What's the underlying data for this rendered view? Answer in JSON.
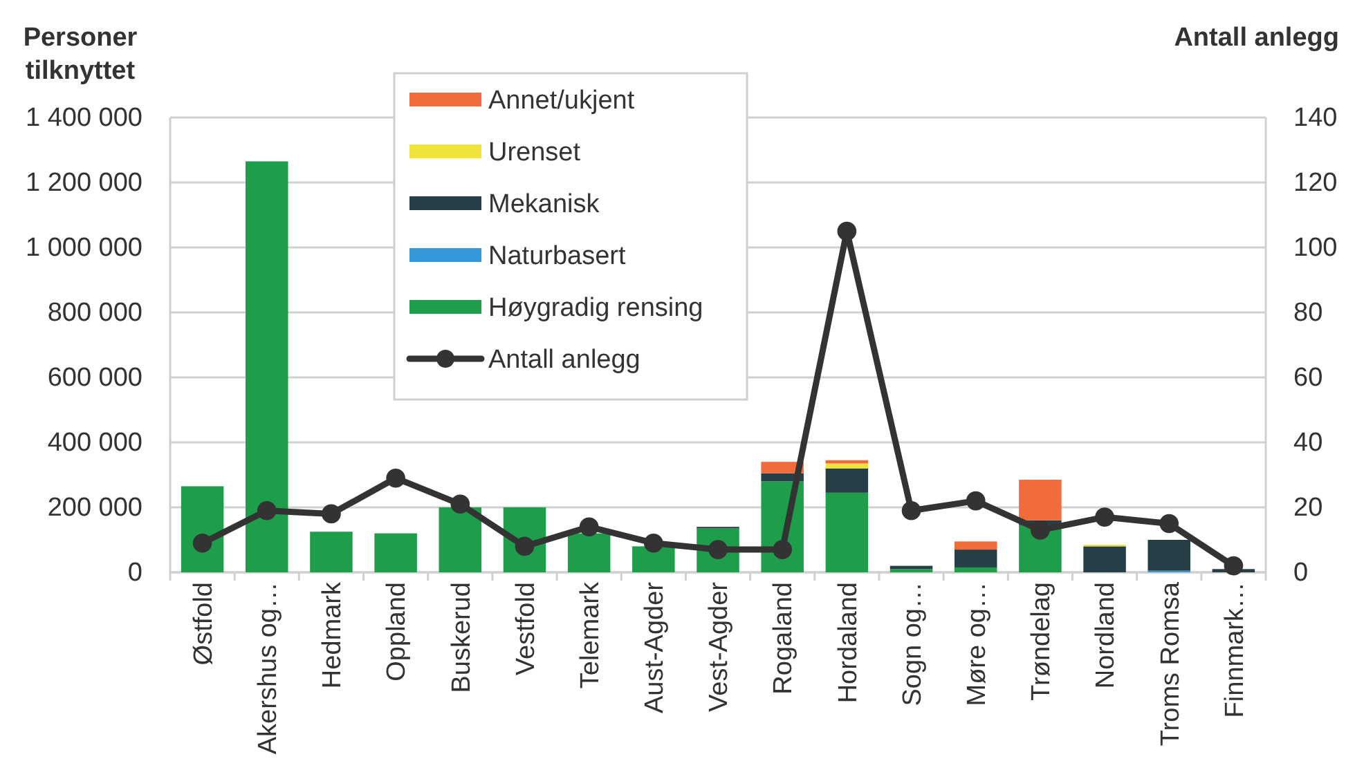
{
  "chart_data": {
    "type": "bar",
    "stacked": true,
    "ylabel": "Personer tilknyttet",
    "y2label": "Antall anlegg",
    "categories": [
      "Østfold",
      "Akershus og…",
      "Hedmark",
      "Oppland",
      "Buskerud",
      "Vestfold",
      "Telemark",
      "Aust-Agder",
      "Vest-Agder",
      "Rogaland",
      "Hordaland",
      "Sogn og…",
      "Møre og…",
      "Trøndelag",
      "Nordland",
      "Troms Romsa",
      "Finnmark…"
    ],
    "series": [
      {
        "name": "Høygradig rensing",
        "color": "#1e9e4a",
        "values": [
          265000,
          1265000,
          125000,
          120000,
          200000,
          200000,
          120000,
          80000,
          135000,
          280000,
          245000,
          10000,
          15000,
          145000,
          null,
          null,
          null
        ]
      },
      {
        "name": "Naturbasert",
        "color": "#3498d8",
        "values": [
          null,
          null,
          null,
          null,
          null,
          null,
          null,
          null,
          null,
          null,
          null,
          null,
          null,
          null,
          null,
          5000,
          null
        ]
      },
      {
        "name": "Mekanisk",
        "color": "#263f47",
        "values": [
          null,
          null,
          null,
          null,
          null,
          null,
          null,
          null,
          5000,
          25000,
          75000,
          10000,
          55000,
          15000,
          80000,
          95000,
          10000
        ]
      },
      {
        "name": "Urenset",
        "color": "#f0e43a",
        "values": [
          null,
          null,
          null,
          null,
          null,
          null,
          null,
          null,
          null,
          null,
          15000,
          null,
          null,
          null,
          5000,
          null,
          null
        ]
      },
      {
        "name": "Annet/ukjent",
        "color": "#f26b3a",
        "values": [
          null,
          null,
          null,
          null,
          null,
          null,
          null,
          null,
          null,
          35000,
          10000,
          null,
          25000,
          125000,
          null,
          null,
          null
        ]
      },
      {
        "name": "Antall anlegg",
        "type": "line",
        "axis": "y2",
        "color": "#333333",
        "values": [
          9,
          19,
          18,
          29,
          21,
          8,
          14,
          9,
          7,
          7,
          105,
          19,
          22,
          13,
          17,
          15,
          2
        ]
      }
    ],
    "ylim": [
      0,
      1400000
    ],
    "yticks": [
      {
        "value": 0,
        "label": "0"
      },
      {
        "value": 200000,
        "label": "200 000"
      },
      {
        "value": 400000,
        "label": "400 000"
      },
      {
        "value": 600000,
        "label": "600 000"
      },
      {
        "value": 800000,
        "label": "800 000"
      },
      {
        "value": 1000000,
        "label": "1 000 000"
      },
      {
        "value": 1200000,
        "label": "1 200 000"
      },
      {
        "value": 1400000,
        "label": "1 400 000"
      }
    ],
    "y2lim": [
      0,
      140
    ],
    "y2ticks": [
      0,
      20,
      40,
      60,
      80,
      100,
      120,
      140
    ],
    "grid": "y",
    "legend": "top left",
    "marker": "circle",
    "line_style": "solid"
  }
}
